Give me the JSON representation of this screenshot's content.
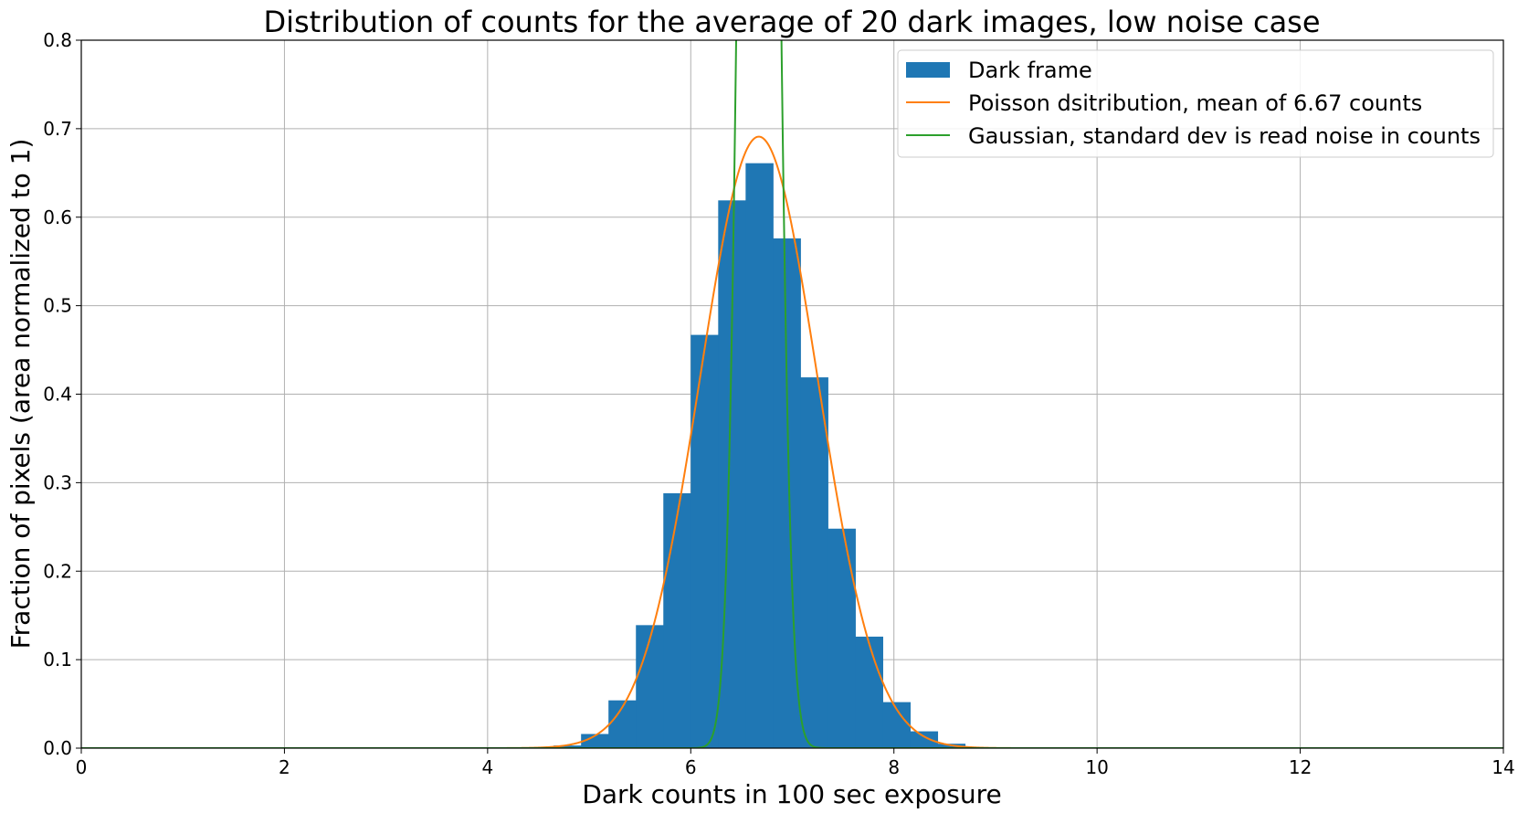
{
  "chart_data": {
    "type": "bar",
    "title": "Distribution of counts for the average of 20 dark images, low noise case",
    "xlabel": "Dark counts in 100 sec exposure",
    "ylabel": "Fraction of pixels (area normalized to 1)",
    "xlim": [
      0,
      14
    ],
    "ylim": [
      0,
      0.8
    ],
    "xticks": [
      "0",
      "2",
      "4",
      "6",
      "8",
      "10",
      "12",
      "14"
    ],
    "yticks": [
      "0.0",
      "0.1",
      "0.2",
      "0.3",
      "0.4",
      "0.5",
      "0.6",
      "0.7",
      "0.8"
    ],
    "grid": true,
    "legend_position": "top-right",
    "histogram": {
      "name": "Dark frame",
      "color": "#1f77b4",
      "bin_edges": [
        4.65,
        4.92,
        5.19,
        5.46,
        5.73,
        6.0,
        6.27,
        6.54,
        6.81,
        7.08,
        7.35,
        7.62,
        7.89,
        8.16,
        8.43,
        8.7
      ],
      "values": [
        0.003,
        0.016,
        0.054,
        0.139,
        0.288,
        0.467,
        0.619,
        0.661,
        0.576,
        0.419,
        0.248,
        0.126,
        0.052,
        0.019,
        0.005
      ]
    },
    "series": [
      {
        "name": "Poisson dsitribution, mean of  6.67 counts",
        "color": "#ff7f0e",
        "kind": "poisson",
        "mean": 6.67,
        "peak": 0.691,
        "sigma": 0.578
      },
      {
        "name": "Gaussian, standard dev is read noise in counts",
        "color": "#2ca02c",
        "kind": "gaussian",
        "mean": 6.67,
        "sigma": 0.14
      }
    ]
  }
}
